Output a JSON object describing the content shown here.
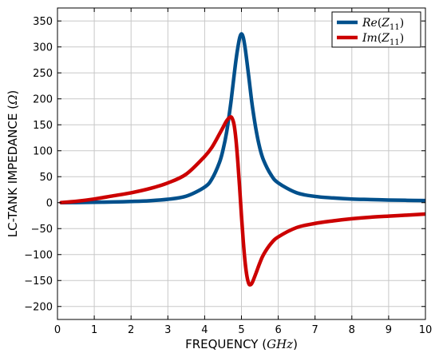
{
  "chart_data": {
    "type": "line",
    "xlabel": "FREQUENCY",
    "xunit": "GHz",
    "ylabel": "LC-TANK IMPEDANCE",
    "yunit": "Ω",
    "xlim": [
      0,
      10
    ],
    "ylim": [
      -225,
      375
    ],
    "xticks": [
      0,
      1,
      2,
      3,
      4,
      5,
      6,
      7,
      8,
      9,
      10
    ],
    "yticks": [
      -200,
      -150,
      -100,
      -50,
      0,
      50,
      100,
      150,
      200,
      250,
      300,
      350
    ],
    "grid": true,
    "legend_position": "top-right",
    "x": [
      0.1,
      0.5,
      1.0,
      1.5,
      2.0,
      2.5,
      3.0,
      3.5,
      4.0,
      4.2,
      4.4,
      4.5,
      4.6,
      4.7,
      4.75,
      4.8,
      4.85,
      4.9,
      4.95,
      5.0,
      5.05,
      5.1,
      5.15,
      5.2,
      5.25,
      5.3,
      5.4,
      5.5,
      5.6,
      5.8,
      6.0,
      6.5,
      7.0,
      7.5,
      8.0,
      8.5,
      9.0,
      9.5,
      10.0
    ],
    "series": [
      {
        "name": "Re(Z11)",
        "color": "#00508c",
        "values": [
          0.0,
          0.2,
          0.8,
          1.3,
          2.3,
          3.7,
          6.5,
          12.5,
          30,
          46,
          77,
          102,
          137,
          186,
          215,
          245,
          274,
          298,
          317,
          325,
          318,
          298,
          271,
          242,
          212,
          184,
          139,
          105,
          82,
          54,
          38,
          19,
          12,
          9,
          7,
          6,
          5,
          4.5,
          4
        ]
      },
      {
        "name": "Im(Z11)",
        "color": "#cc0000",
        "values": [
          0.3,
          2.5,
          7,
          13,
          19,
          27,
          38,
          55,
          89,
          107,
          132,
          145,
          158,
          165,
          162,
          150,
          122,
          80,
          30,
          -25,
          -75,
          -115,
          -142,
          -156,
          -158,
          -153,
          -135,
          -116,
          -100,
          -79,
          -66,
          -48,
          -40,
          -35,
          -31,
          -28,
          -26,
          -24,
          -22
        ]
      }
    ]
  }
}
